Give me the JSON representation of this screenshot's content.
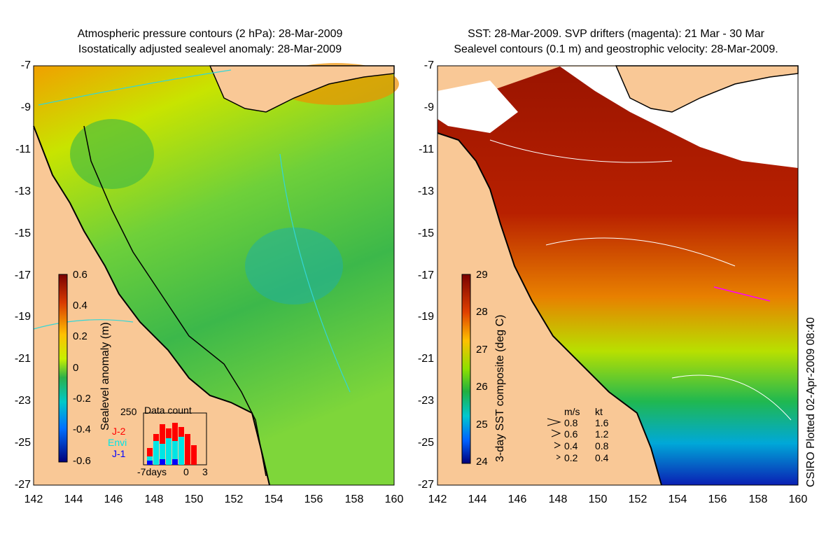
{
  "left_panel": {
    "title_line1": "Atmospheric pressure contours (2 hPa): 28-Mar-2009",
    "title_line2": "Isostatically adjusted sealevel anomaly: 28-Mar-2009",
    "colorbar_label": "Sealevel anomaly (m)",
    "colorbar_ticks": [
      "0.6",
      "0.4",
      "0.2",
      "0",
      "-0.2",
      "-0.4",
      "-0.6"
    ],
    "inset": {
      "title": "Data count",
      "ymax_label": "250",
      "missions": [
        "J-2",
        "Envi",
        "J-1"
      ],
      "mission_colors": [
        "#ff0000",
        "#00e5e5",
        "#0000ff"
      ],
      "xtick_labels": [
        "-7days",
        "0",
        "3"
      ]
    }
  },
  "right_panel": {
    "title_line1": "SST: 28-Mar-2009. SVP drifters (magenta): 21 Mar - 30 Mar",
    "title_line2": "Sealevel contours (0.1 m) and geostrophic velocity: 28-Mar-2009.",
    "colorbar_label": "3-day SST composite (deg C)",
    "colorbar_ticks": [
      "29",
      "28",
      "27",
      "26",
      "25",
      "24"
    ],
    "velocity_legend": {
      "header_ms": "m/s",
      "header_kt": "kt",
      "rows": [
        {
          "ms": "0.8",
          "kt": "1.6"
        },
        {
          "ms": "0.6",
          "kt": "1.2"
        },
        {
          "ms": "0.4",
          "kt": "0.8"
        },
        {
          "ms": "0.2",
          "kt": "0.4"
        }
      ]
    }
  },
  "axes": {
    "lat_ticks": [
      "-7",
      "-9",
      "-11",
      "-13",
      "-15",
      "-17",
      "-19",
      "-21",
      "-23",
      "-25",
      "-27"
    ],
    "lon_ticks": [
      "142",
      "144",
      "146",
      "148",
      "150",
      "152",
      "154",
      "156",
      "158",
      "160"
    ]
  },
  "credit": "CSIRO Plotted 02-Apr-2009 08:40",
  "colors": {
    "land": "#f9c896",
    "sla_low": "#2aa84a",
    "sla_high": "#e88a00",
    "sst_hot": "#9a1400",
    "sst_cold": "#0a1fb4",
    "coast": "#000000",
    "pressure_contour": "#33d6d6"
  }
}
